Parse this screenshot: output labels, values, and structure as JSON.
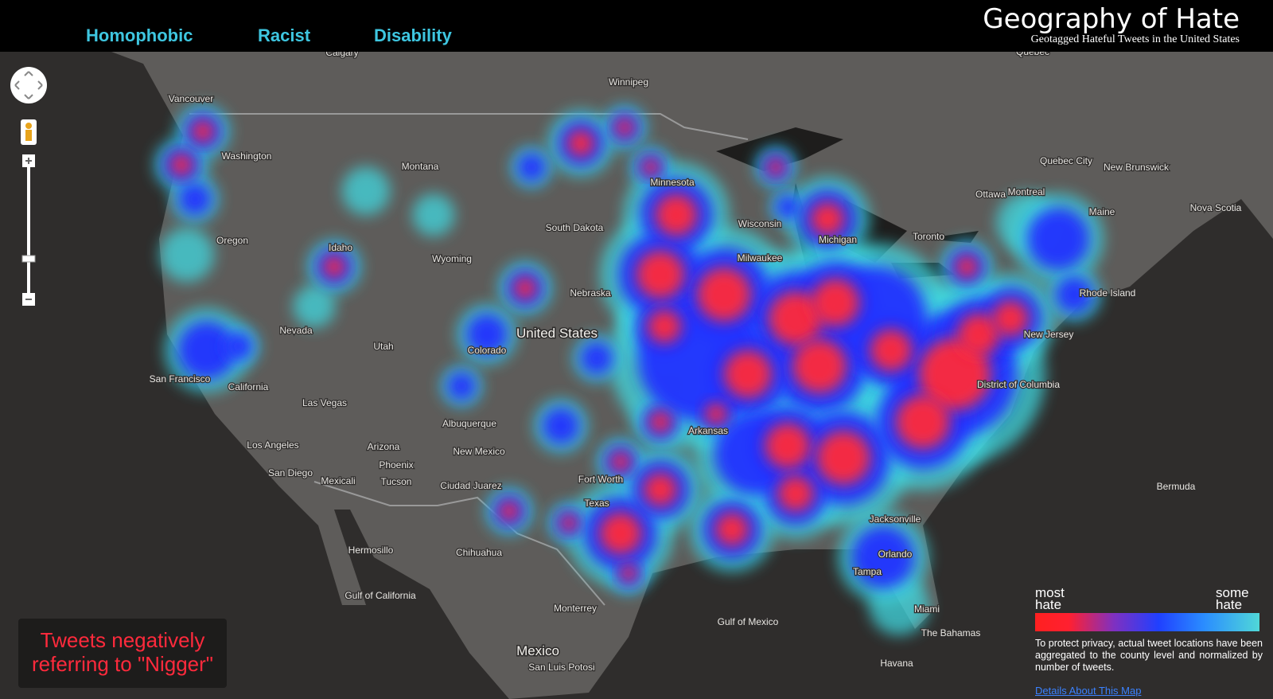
{
  "header": {
    "title": "Geography of Hate",
    "subtitle": "Geotagged Hateful Tweets in the United States",
    "tabs": [
      "Homophobic",
      "Racist",
      "Disability"
    ]
  },
  "map_labels": [
    "Calgary",
    "Winnipeg",
    "Vancouver",
    "Quebec",
    "Washington",
    "Montana",
    "Minnesota",
    "South Dakota",
    "Oregon",
    "Idaho",
    "Wyoming",
    "Wisconsin",
    "Michigan",
    "Milwaukee",
    "Toronto",
    "Ottawa",
    "Montreal",
    "Quebec City",
    "New Brunswick",
    "Nova Scotia",
    "Maine",
    "Nebraska",
    "Nevada",
    "Utah",
    "Colorado",
    "Rhode Island",
    "New Jersey",
    "District of Columbia",
    "San Francisco",
    "California",
    "Las Vegas",
    "Arkansas",
    "Albuquerque",
    "Los Angeles",
    "Arizona",
    "New Mexico",
    "Phoenix",
    "San Diego",
    "Mexicali",
    "Tucson",
    "Ciudad Juarez",
    "Fort Worth",
    "Texas",
    "Jacksonville",
    "Hermosillo",
    "Chihuahua",
    "Orlando",
    "Tampa",
    "Miami",
    "Monterrey",
    "Gulf of Mexico",
    "Gulf of California",
    "Bermuda",
    "The Bahamas",
    "San Luis Potosi",
    "Havana"
  ],
  "country_labels": [
    "United States",
    "Mexico"
  ],
  "legend": {
    "most": "most hate",
    "some": "some hate",
    "note": "To protect privacy, actual tweet locations have been aggregated to the county level and normalized by number of tweets.",
    "link": "Details About This Map"
  },
  "caption": "Tweets negatively referring to \"Nigger\""
}
